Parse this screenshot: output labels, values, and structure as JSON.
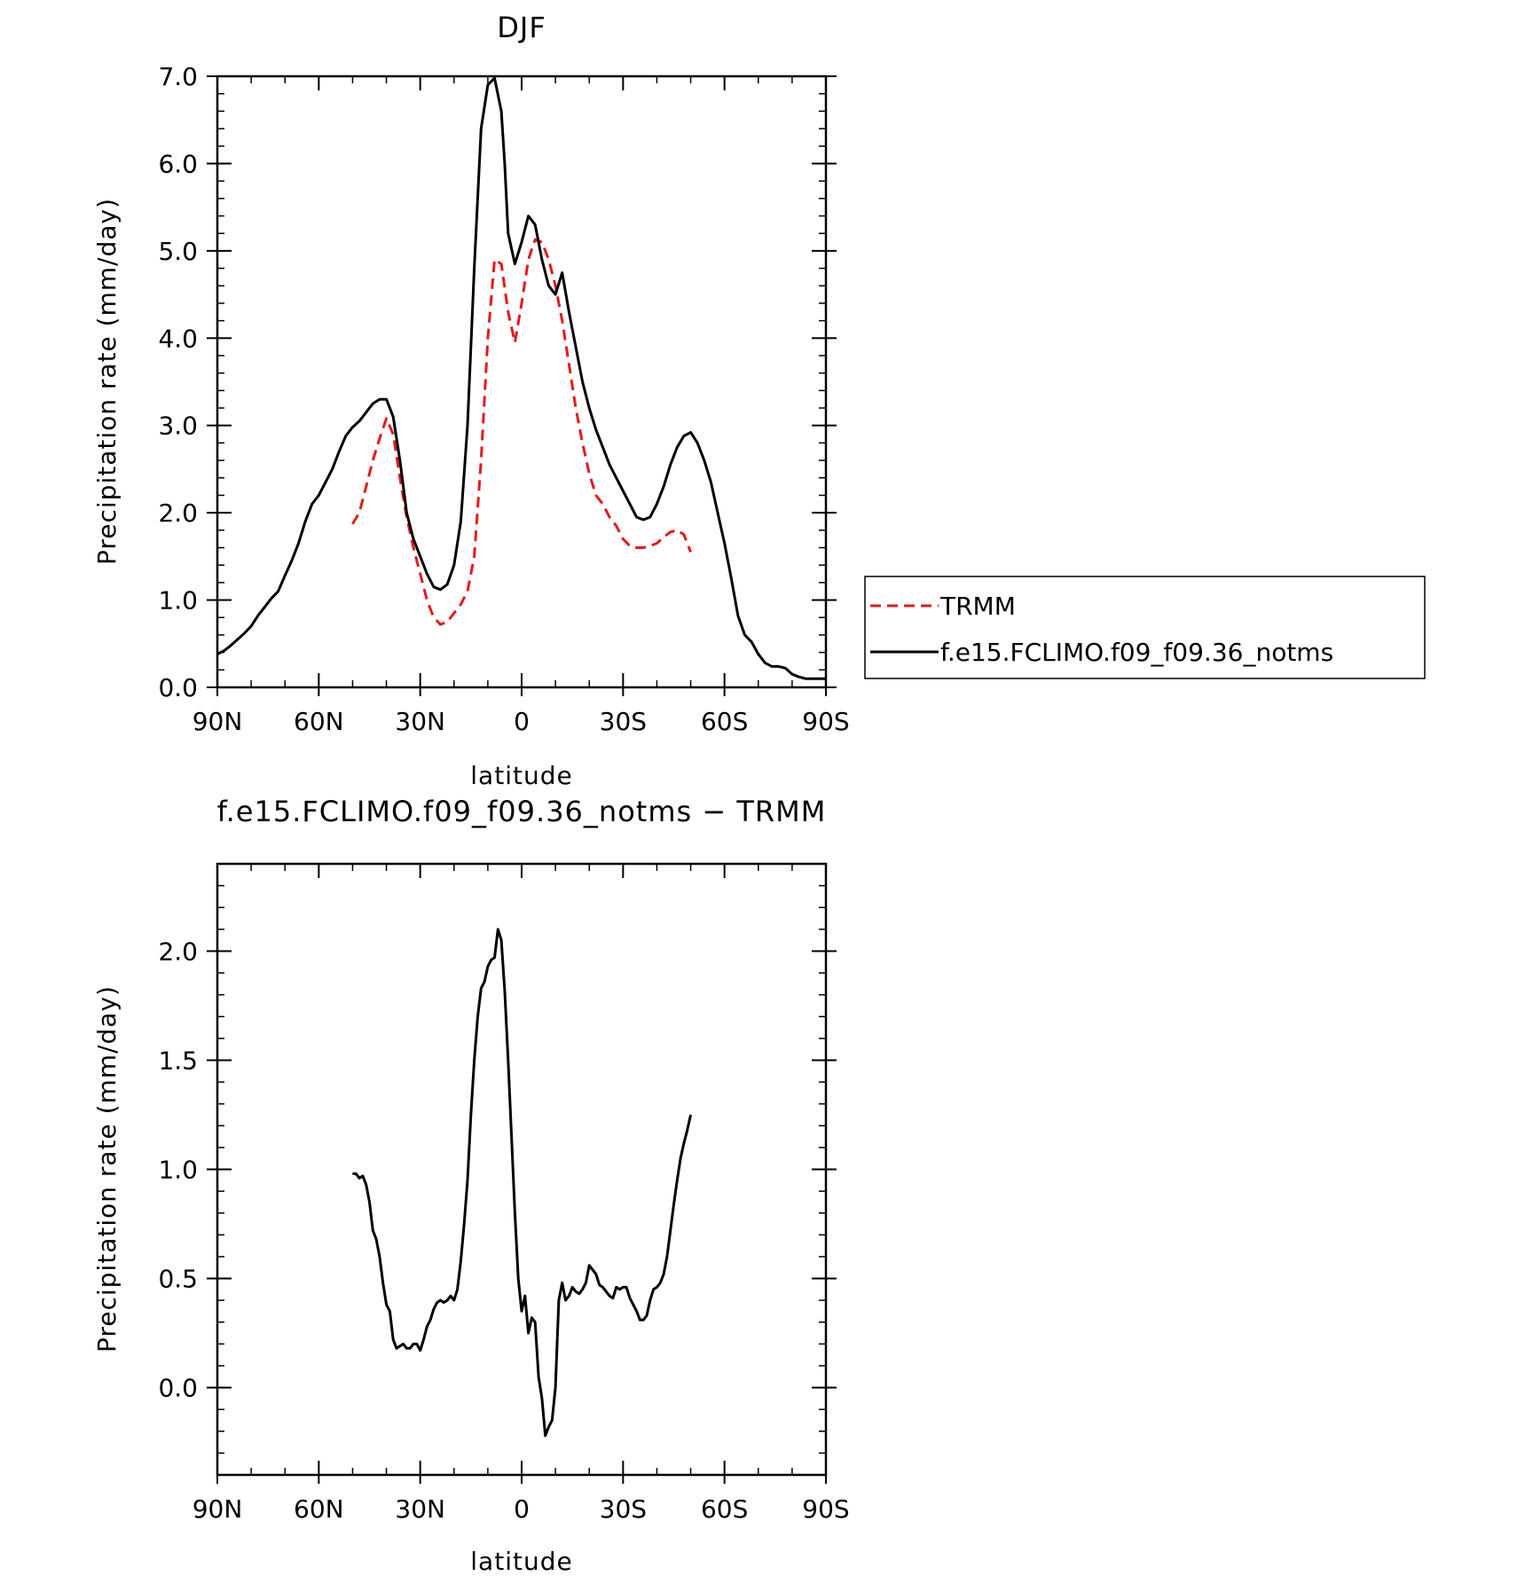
{
  "chart_data": [
    {
      "type": "line",
      "title": "DJF",
      "xlabel": "latitude",
      "ylabel": "Precipitation rate (mm/day)",
      "xlim": [
        90,
        -90
      ],
      "ylim": [
        0,
        7
      ],
      "x_ticks": [
        {
          "value": 90,
          "label": "90N"
        },
        {
          "value": 60,
          "label": "60N"
        },
        {
          "value": 30,
          "label": "30N"
        },
        {
          "value": 0,
          "label": "0"
        },
        {
          "value": -30,
          "label": "30S"
        },
        {
          "value": -60,
          "label": "60S"
        },
        {
          "value": -90,
          "label": "90S"
        }
      ],
      "y_ticks": [
        {
          "value": 0,
          "label": "0.0"
        },
        {
          "value": 1,
          "label": "1.0"
        },
        {
          "value": 2,
          "label": "2.0"
        },
        {
          "value": 3,
          "label": "3.0"
        },
        {
          "value": 4,
          "label": "4.0"
        },
        {
          "value": 5,
          "label": "5.0"
        },
        {
          "value": 6,
          "label": "6.0"
        },
        {
          "value": 7,
          "label": "7.0"
        }
      ],
      "legend": "right",
      "series": [
        {
          "name": "TRMM",
          "color": "#e41a1c",
          "dash": true,
          "x": [
            50,
            48,
            46,
            44,
            42,
            40,
            38,
            36,
            34,
            32,
            30,
            28,
            26,
            24,
            22,
            20,
            18,
            16,
            14,
            12,
            10,
            8,
            6,
            4,
            2,
            0,
            -2,
            -4,
            -6,
            -8,
            -10,
            -12,
            -14,
            -16,
            -18,
            -20,
            -22,
            -24,
            -26,
            -28,
            -30,
            -32,
            -34,
            -36,
            -38,
            -40,
            -42,
            -44,
            -46,
            -48,
            -50
          ],
          "y": [
            1.87,
            2.0,
            2.3,
            2.6,
            2.85,
            3.08,
            2.9,
            2.4,
            1.95,
            1.6,
            1.3,
            1.0,
            0.8,
            0.72,
            0.75,
            0.85,
            0.95,
            1.1,
            1.5,
            2.6,
            4.0,
            4.9,
            4.85,
            4.3,
            3.95,
            4.4,
            4.9,
            5.13,
            5.1,
            4.9,
            4.6,
            4.2,
            3.7,
            3.2,
            2.8,
            2.45,
            2.2,
            2.1,
            1.95,
            1.85,
            1.7,
            1.62,
            1.6,
            1.6,
            1.62,
            1.65,
            1.72,
            1.78,
            1.8,
            1.75,
            1.55
          ]
        },
        {
          "name": "f.e15.FCLIMO.f09_f09.36_notms",
          "color": "#000000",
          "dash": false,
          "x": [
            90,
            88,
            86,
            84,
            82,
            80,
            78,
            76,
            74,
            72,
            70,
            68,
            66,
            64,
            62,
            60,
            58,
            56,
            54,
            52,
            50,
            48,
            46,
            44,
            42,
            40,
            38,
            36,
            34,
            32,
            30,
            28,
            26,
            24,
            22,
            20,
            18,
            16,
            14,
            12,
            10,
            8,
            6,
            5,
            4,
            2,
            0,
            -2,
            -4,
            -6,
            -8,
            -10,
            -12,
            -14,
            -16,
            -18,
            -20,
            -22,
            -24,
            -26,
            -28,
            -30,
            -32,
            -34,
            -36,
            -38,
            -40,
            -42,
            -44,
            -46,
            -48,
            -50,
            -52,
            -54,
            -56,
            -58,
            -60,
            -62,
            -64,
            -66,
            -68,
            -70,
            -72,
            -74,
            -76,
            -78,
            -80,
            -82,
            -84,
            -86,
            -88,
            -90
          ],
          "y": [
            0.38,
            0.42,
            0.48,
            0.55,
            0.62,
            0.7,
            0.82,
            0.92,
            1.02,
            1.1,
            1.28,
            1.45,
            1.65,
            1.9,
            2.1,
            2.2,
            2.35,
            2.5,
            2.7,
            2.88,
            2.98,
            3.05,
            3.15,
            3.25,
            3.3,
            3.3,
            3.1,
            2.6,
            2.0,
            1.7,
            1.5,
            1.3,
            1.15,
            1.12,
            1.18,
            1.4,
            1.9,
            3.0,
            4.8,
            6.4,
            6.9,
            6.98,
            6.6,
            6.0,
            5.2,
            4.85,
            5.1,
            5.4,
            5.3,
            4.9,
            4.6,
            4.5,
            4.75,
            4.3,
            3.9,
            3.5,
            3.2,
            2.95,
            2.75,
            2.55,
            2.4,
            2.25,
            2.1,
            1.95,
            1.92,
            1.95,
            2.1,
            2.3,
            2.55,
            2.75,
            2.88,
            2.92,
            2.8,
            2.6,
            2.35,
            2.0,
            1.65,
            1.25,
            0.82,
            0.6,
            0.52,
            0.38,
            0.28,
            0.24,
            0.24,
            0.22,
            0.15,
            0.12,
            0.1,
            0.1,
            0.1,
            0.1
          ]
        }
      ]
    },
    {
      "type": "line",
      "title": "f.e15.FCLIMO.f09_f09.36_notms − TRMM",
      "xlabel": "latitude",
      "ylabel": "Precipitation rate (mm/day)",
      "xlim": [
        90,
        -90
      ],
      "ylim": [
        -0.4,
        2.4
      ],
      "x_ticks": [
        {
          "value": 90,
          "label": "90N"
        },
        {
          "value": 60,
          "label": "60N"
        },
        {
          "value": 30,
          "label": "30N"
        },
        {
          "value": 0,
          "label": "0"
        },
        {
          "value": -30,
          "label": "30S"
        },
        {
          "value": -60,
          "label": "60S"
        },
        {
          "value": -90,
          "label": "90S"
        }
      ],
      "y_ticks": [
        {
          "value": 0,
          "label": "0.0"
        },
        {
          "value": 0.5,
          "label": "0.5"
        },
        {
          "value": 1,
          "label": "1.0"
        },
        {
          "value": 1.5,
          "label": "1.5"
        },
        {
          "value": 2,
          "label": "2.0"
        }
      ],
      "series": [
        {
          "name": "",
          "color": "#000000",
          "dash": false,
          "x": [
            50,
            49,
            48,
            47,
            46,
            45,
            44,
            43,
            42,
            41,
            40,
            39,
            38,
            37,
            36,
            35,
            34,
            33,
            32,
            31,
            30,
            29,
            28,
            27,
            26,
            25,
            24,
            23,
            22,
            21,
            20,
            19,
            18,
            17,
            16,
            15,
            14,
            13,
            12,
            11,
            10,
            9,
            8,
            7,
            6,
            5,
            4,
            3,
            2,
            1,
            0,
            -1,
            -2,
            -3,
            -4,
            -5,
            -6,
            -7,
            -8,
            -9,
            -10,
            -11,
            -12,
            -13,
            -14,
            -15,
            -16,
            -17,
            -18,
            -19,
            -20,
            -21,
            -22,
            -23,
            -24,
            -25,
            -26,
            -27,
            -28,
            -29,
            -30,
            -31,
            -32,
            -33,
            -34,
            -35,
            -36,
            -37,
            -38,
            -39,
            -40,
            -41,
            -42,
            -43,
            -44,
            -45,
            -46,
            -47,
            -48,
            -49,
            -50
          ],
          "y": [
            0.98,
            0.98,
            0.96,
            0.97,
            0.93,
            0.85,
            0.72,
            0.68,
            0.6,
            0.48,
            0.38,
            0.35,
            0.22,
            0.18,
            0.19,
            0.2,
            0.18,
            0.18,
            0.2,
            0.2,
            0.17,
            0.22,
            0.28,
            0.31,
            0.36,
            0.39,
            0.4,
            0.39,
            0.4,
            0.42,
            0.4,
            0.45,
            0.58,
            0.75,
            0.95,
            1.25,
            1.5,
            1.7,
            1.83,
            1.86,
            1.93,
            1.96,
            1.97,
            2.1,
            2.05,
            1.82,
            1.5,
            1.15,
            0.8,
            0.5,
            0.35,
            0.42,
            0.25,
            0.32,
            0.3,
            0.05,
            -0.05,
            -0.22,
            -0.18,
            -0.15,
            0.0,
            0.4,
            0.48,
            0.4,
            0.42,
            0.46,
            0.44,
            0.43,
            0.45,
            0.48,
            0.56,
            0.54,
            0.52,
            0.47,
            0.46,
            0.44,
            0.42,
            0.41,
            0.46,
            0.45,
            0.46,
            0.46,
            0.41,
            0.38,
            0.35,
            0.31,
            0.31,
            0.33,
            0.4,
            0.45,
            0.46,
            0.48,
            0.52,
            0.6,
            0.72,
            0.84,
            0.95,
            1.05,
            1.12,
            1.18,
            1.25
          ]
        }
      ]
    }
  ]
}
